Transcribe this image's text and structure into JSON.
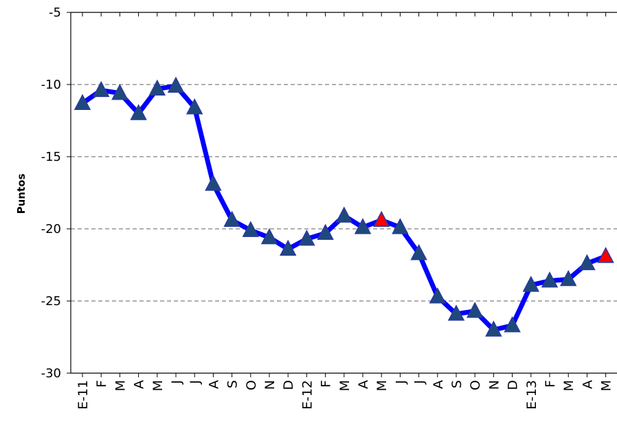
{
  "chart_data": {
    "type": "line",
    "title": "",
    "xlabel": "",
    "ylabel": "Puntos",
    "ylim": [
      -30,
      -5
    ],
    "yticks": [
      -5,
      -10,
      -15,
      -20,
      -25,
      -30
    ],
    "grid": true,
    "categories": [
      "E-11",
      "F",
      "M",
      "A",
      "M",
      "J",
      "J",
      "A",
      "S",
      "O",
      "N",
      "D",
      "E-12",
      "F",
      "M",
      "A",
      "M",
      "J",
      "J",
      "A",
      "S",
      "O",
      "N",
      "D",
      "E-13",
      "F",
      "M",
      "A",
      "M"
    ],
    "series": [
      {
        "values": [
          -11.3,
          -10.4,
          -10.6,
          -12.0,
          -10.3,
          -10.1,
          -11.6,
          -16.9,
          -19.4,
          -20.1,
          -20.6,
          -21.4,
          -20.7,
          -20.3,
          -19.1,
          -19.9,
          -19.4,
          -19.9,
          -21.7,
          -24.7,
          -25.9,
          -25.7,
          -27.0,
          -26.7,
          -23.9,
          -23.6,
          -23.5,
          -22.4,
          -21.9
        ],
        "line_color": "#0000ff",
        "marker_color": "#1f497d",
        "highlight_color": "#ff0000",
        "highlight_indices": [
          16,
          28
        ]
      }
    ]
  }
}
